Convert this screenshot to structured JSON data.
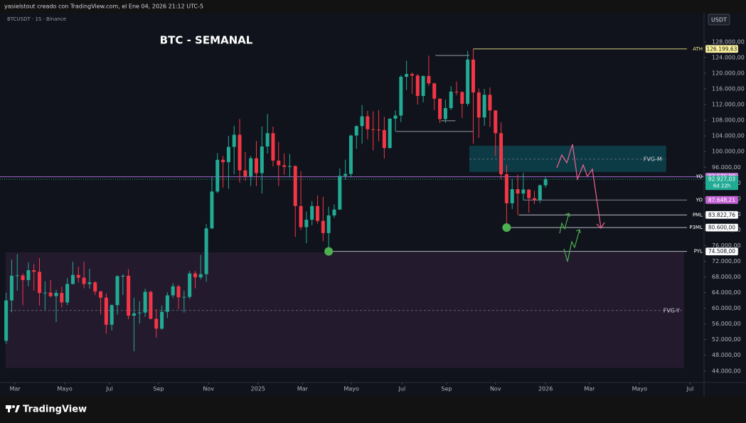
{
  "header": {
    "watermark": "yasielstout creado con TradingView.com, el Ene 04, 2026 21:12 UTC-5",
    "symbol": "BTCUSDT · 1S · Binance",
    "currency": "USDT",
    "brand": "TradingView"
  },
  "chart_data": {
    "type": "candlestick",
    "title": "BTC - SEMANAL",
    "categories": [
      null,
      null,
      null,
      null,
      null,
      null,
      null,
      null,
      null,
      null,
      null,
      null,
      null,
      null,
      null,
      null,
      null,
      null,
      null,
      null,
      null,
      null,
      null,
      null,
      null,
      null,
      null,
      null,
      null,
      null,
      null,
      null,
      null,
      null,
      null,
      null,
      null,
      null,
      null,
      null,
      null,
      null,
      null,
      null,
      null,
      null,
      null,
      null,
      null,
      null,
      null,
      null,
      null,
      null,
      null,
      null,
      null,
      null,
      null,
      null,
      null,
      null,
      null,
      null,
      null,
      null,
      null,
      null,
      null,
      null,
      null,
      null,
      null,
      null,
      null,
      null,
      null,
      null,
      null,
      null,
      null,
      null,
      null,
      null,
      null,
      null,
      null,
      null,
      null,
      null,
      null,
      null,
      null,
      null,
      null,
      null,
      null,
      null
    ],
    "open": [
      51700,
      62000,
      68300,
      68400,
      67200,
      69700,
      69300,
      63900,
      64000,
      63100,
      63900,
      61500,
      66200,
      68500,
      67800,
      66200,
      66600,
      64300,
      62700,
      55800,
      60800,
      68200,
      68300,
      58100,
      58700,
      58900,
      64200,
      57300,
      54800,
      59100,
      63300,
      65600,
      62800,
      62900,
      68900,
      67900,
      68700,
      80400,
      89800,
      97900,
      97300,
      101200,
      104300,
      95200,
      93700,
      98300,
      94500,
      101300,
      104700,
      97700,
      96500,
      96100,
      96300,
      86100,
      80700,
      82600,
      86100,
      82300,
      79200,
      83700,
      85200,
      93800,
      94300,
      104100,
      106500,
      109000,
      105700,
      105600,
      105500,
      100900,
      108400,
      109200,
      119100,
      119800,
      119400,
      114200,
      119300,
      117400,
      113500,
      108300,
      111100,
      115300,
      115200,
      112200,
      123500,
      115100,
      108700,
      114500,
      110500,
      104700,
      94200,
      86800,
      90400,
      89300,
      90300,
      88100,
      87700,
      91400
    ],
    "high": [
      64000,
      72400,
      73800,
      68900,
      71700,
      71300,
      72800,
      66900,
      67200,
      64700,
      65500,
      67700,
      71900,
      70600,
      71900,
      70100,
      66900,
      64500,
      63800,
      61000,
      68400,
      68700,
      70000,
      62700,
      61800,
      65000,
      64500,
      59800,
      60700,
      64100,
      66400,
      66000,
      64500,
      69500,
      69500,
      73600,
      81500,
      93500,
      99600,
      98900,
      104000,
      106600,
      108300,
      99900,
      98900,
      102700,
      106400,
      109600,
      106400,
      102500,
      99500,
      99400,
      96500,
      95000,
      84700,
      87400,
      88800,
      88500,
      85900,
      86500,
      95700,
      97900,
      104300,
      106700,
      111900,
      110400,
      110300,
      110600,
      108900,
      108500,
      110500,
      119500,
      123200,
      120200,
      119800,
      119400,
      124500,
      117600,
      113600,
      113300,
      116700,
      117900,
      115400,
      125700,
      126199.63,
      116100,
      116000,
      116400,
      110600,
      107500,
      96600,
      93100,
      94100,
      94600,
      90400,
      90000,
      91600,
      93500
    ],
    "low": [
      50900,
      59000,
      64500,
      60800,
      65600,
      64500,
      60700,
      59600,
      62800,
      56500,
      60200,
      60800,
      66100,
      66600,
      65100,
      65000,
      63400,
      58400,
      53500,
      54300,
      58400,
      63400,
      57200,
      49000,
      56100,
      57800,
      57200,
      52500,
      54500,
      57500,
      62600,
      59800,
      58900,
      62400,
      65100,
      67400,
      66800,
      80200,
      89400,
      90800,
      90500,
      94200,
      92100,
      92500,
      91200,
      91200,
      89300,
      99500,
      96200,
      91200,
      94100,
      93400,
      78200,
      80000,
      76600,
      81200,
      81600,
      77100,
      74508,
      83100,
      85100,
      92800,
      93400,
      100700,
      102000,
      103100,
      100300,
      102600,
      98200,
      100800,
      105100,
      107500,
      115700,
      114700,
      112000,
      112600,
      116800,
      110600,
      107300,
      107300,
      110600,
      114400,
      108600,
      111600,
      102000,
      103500,
      106600,
      106300,
      98900,
      93000,
      80600,
      85300,
      83800,
      87600,
      84400,
      86600,
      86900,
      90800
    ],
    "close": [
      62000,
      68300,
      68400,
      67200,
      69700,
      69300,
      63900,
      64000,
      63100,
      63900,
      61500,
      66200,
      68500,
      67800,
      66200,
      66600,
      64300,
      62700,
      55800,
      60800,
      68200,
      68300,
      58100,
      58700,
      58900,
      64200,
      57300,
      54800,
      59100,
      63300,
      65600,
      62800,
      62900,
      68900,
      67900,
      68700,
      80400,
      89800,
      97900,
      97300,
      101200,
      104300,
      95200,
      93700,
      98300,
      94500,
      101300,
      104700,
      97700,
      96500,
      96100,
      96300,
      86100,
      80700,
      82600,
      86100,
      82300,
      79200,
      83700,
      85200,
      93800,
      94300,
      104100,
      106500,
      109000,
      105700,
      105600,
      105500,
      100900,
      108400,
      109200,
      119100,
      119800,
      119400,
      114200,
      119300,
      117400,
      113500,
      108300,
      111100,
      115300,
      115200,
      112200,
      123500,
      115100,
      108700,
      114500,
      110500,
      104700,
      94200,
      86800,
      90400,
      89300,
      90300,
      88100,
      87700,
      91400,
      92927.03
    ],
    "last_label": "92.927,03",
    "countdown": "6d 22h",
    "up_color": "#22ab94",
    "down_color": "#f23645",
    "xlim": [
      -1.1,
      125.5
    ],
    "xticks": [
      {
        "value": 1.6,
        "label": "Mar"
      },
      {
        "value": 10.55,
        "label": "Mayo"
      },
      {
        "value": 18.6,
        "label": "Jul"
      },
      {
        "value": 27.4,
        "label": "Sep"
      },
      {
        "value": 36.4,
        "label": "Nov"
      },
      {
        "value": 45.3,
        "label": "2025"
      },
      {
        "value": 53.3,
        "label": "Mar"
      },
      {
        "value": 62.1,
        "label": "Mayo"
      },
      {
        "value": 71.2,
        "label": "Jul"
      },
      {
        "value": 79.2,
        "label": "Sep"
      },
      {
        "value": 88.0,
        "label": "Nov"
      },
      {
        "value": 97.0,
        "label": "2026"
      },
      {
        "value": 104.9,
        "label": "Mar"
      },
      {
        "value": 113.9,
        "label": "Mayo"
      },
      {
        "value": 123.0,
        "label": "Jul"
      }
    ],
    "ylim": [
      41600,
      131800
    ],
    "yticks": [
      {
        "value": 44000,
        "label": "44.000,00"
      },
      {
        "value": 48000,
        "label": "48.000,00"
      },
      {
        "value": 52000,
        "label": "52.000,00"
      },
      {
        "value": 56000,
        "label": "56.000,00"
      },
      {
        "value": 60000,
        "label": "60.000,00"
      },
      {
        "value": 64000,
        "label": "64.000,00"
      },
      {
        "value": 68000,
        "label": "68.000,00"
      },
      {
        "value": 72000,
        "label": "72.000,00"
      },
      {
        "value": 76000,
        "label": "76.000,00"
      },
      {
        "value": 80000,
        "label": "80.000,00"
      },
      {
        "value": 84000,
        "label": "84.000,00"
      },
      {
        "value": 88000,
        "label": "88.000,00"
      },
      {
        "value": 92000,
        "label": "92.000,00"
      },
      {
        "value": 96000,
        "label": "96.000,00"
      },
      {
        "value": 100000,
        "label": "100.000,00"
      },
      {
        "value": 104000,
        "label": "104.000,00"
      },
      {
        "value": 108000,
        "label": "108.000,00"
      },
      {
        "value": 112000,
        "label": "112.000,00"
      },
      {
        "value": 116000,
        "label": "116.000,00"
      },
      {
        "value": 120000,
        "label": "120.000,00"
      },
      {
        "value": 124000,
        "label": "124.000,00"
      },
      {
        "value": 128000,
        "label": "128.000,00"
      }
    ],
    "zones": [
      {
        "name": "FVG-M",
        "top": 101500,
        "bottom": 94800,
        "mid": 98070,
        "start": 83.3,
        "end": 118.7,
        "color": "#0d3b45"
      },
      {
        "name": "FVG-Y",
        "top": 74300,
        "bottom": 44735,
        "mid": 59430,
        "start": -0.1,
        "end": 121.9,
        "color": "#241a2e"
      }
    ],
    "ranges": [
      {
        "value": 124550,
        "start": 77.2,
        "end": 83.3
      },
      {
        "value": 105150,
        "start": 70.1,
        "end": 84
      },
      {
        "value": 107860,
        "start": 78.2,
        "end": 80.8
      }
    ],
    "levels": [
      {
        "name": "ATH",
        "value": 126199.63,
        "label": "126.199,63",
        "start": 84,
        "color": "#f0e68c",
        "box": "#fff59d",
        "ink": "#131722"
      },
      {
        "name": "YO",
        "value": 93576,
        "label": "93.576,00",
        "color": "#9c6ad1",
        "box": "#d07ee0",
        "ink": "#ffffff"
      },
      {
        "name": "YO",
        "value": 87648.21,
        "label": "87.648,21",
        "start": 93,
        "color": "#9598a1",
        "box": "#c562d6",
        "ink": "#ffffff"
      },
      {
        "name": "PML",
        "value": 83822.76,
        "label": "83.822,76",
        "start": 92.2,
        "color": "#d1d4dc",
        "box": "#ffffff",
        "ink": "#131722"
      },
      {
        "name": "P3ML",
        "value": 80600,
        "label": "80.600,00",
        "start": 90,
        "color": "#d1d4dc",
        "box": "#ffffff",
        "ink": "#131722"
      },
      {
        "name": "PYL",
        "value": 74508,
        "label": "74.508,00",
        "start": 58,
        "color": "#d1d4dc",
        "box": "#ffffff",
        "ink": "#131722"
      }
    ],
    "markers": [
      {
        "index": 90,
        "color": "#4caf50"
      },
      {
        "index": 58,
        "color": "#4caf50"
      }
    ]
  }
}
